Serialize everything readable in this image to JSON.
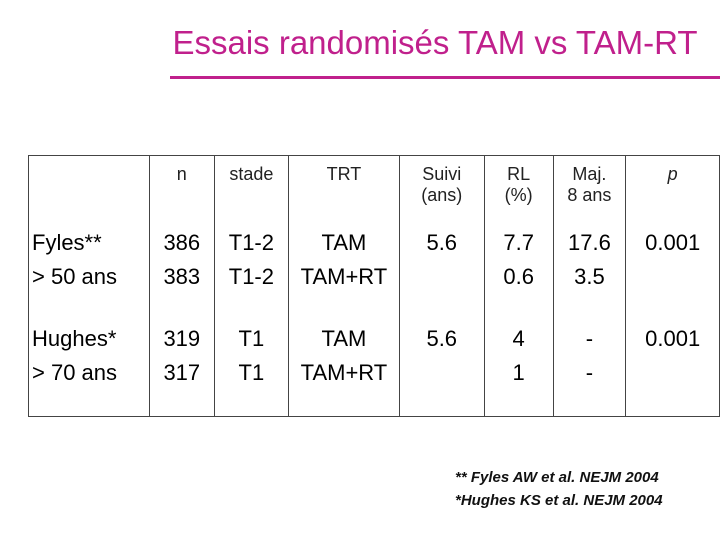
{
  "title": "Essais randomisés TAM vs TAM-RT",
  "table": {
    "header": [
      [],
      [
        "n"
      ],
      [
        "stade"
      ],
      [
        "TRT"
      ],
      [
        "Suivi",
        "(ans)"
      ],
      [
        "RL",
        "(%)"
      ],
      [
        "Maj.",
        "8 ans"
      ],
      [
        "p"
      ]
    ],
    "rows": [
      [
        [
          "Fyles**",
          "> 50 ans"
        ],
        [
          "386",
          "383"
        ],
        [
          "T1-2",
          "T1-2"
        ],
        [
          "TAM",
          "TAM+RT"
        ],
        [
          "5.6"
        ],
        [
          "7.7",
          "0.6"
        ],
        [
          "17.6",
          "3.5"
        ],
        [
          "0.001"
        ]
      ],
      [
        [
          "Hughes*",
          "> 70 ans"
        ],
        [
          "319",
          "317"
        ],
        [
          "T1",
          "T1"
        ],
        [
          "TAM",
          "TAM+RT"
        ],
        [
          "5.6"
        ],
        [
          "4",
          "1"
        ],
        [
          "-",
          "-"
        ],
        [
          "0.001"
        ]
      ]
    ]
  },
  "footnotes": [
    "** Fyles AW et al. NEJM 2004",
    "*Hughes KS et al. NEJM 2004"
  ]
}
